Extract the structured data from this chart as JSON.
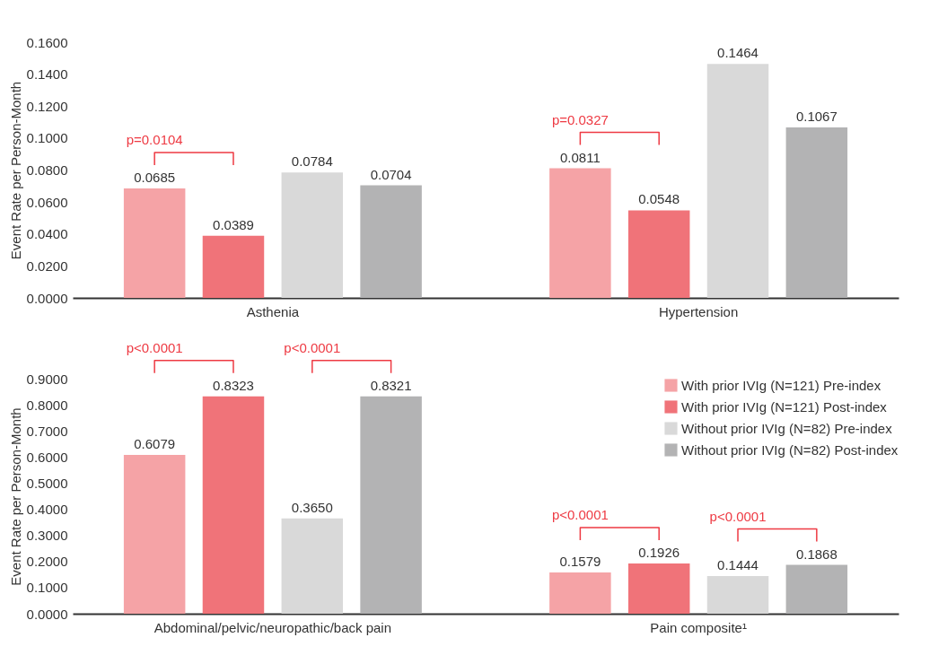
{
  "chart_data": [
    {
      "type": "bar",
      "ylabel": "Event Rate per Person-Month",
      "categories": [
        "Asthenia",
        "Hypertension"
      ],
      "series": [
        {
          "color": "#f5a3a6",
          "values": [
            0.0685,
            0.0811
          ],
          "value_labels": [
            "0.0685",
            "0.0811"
          ]
        },
        {
          "color": "#f07379",
          "values": [
            0.0389,
            0.0548
          ],
          "value_labels": [
            "0.0389",
            "0.0548"
          ]
        },
        {
          "color": "#d9d9d9",
          "values": [
            0.0784,
            0.1464
          ],
          "value_labels": [
            "0.0784",
            "0.1464"
          ]
        },
        {
          "color": "#b3b3b4",
          "values": [
            0.0704,
            0.1067
          ],
          "value_labels": [
            "0.0704",
            "0.1067"
          ]
        }
      ],
      "ylim": [
        0,
        0.16
      ],
      "yticks": [
        {
          "value": 0,
          "label": "0.0000"
        },
        {
          "value": 0.02,
          "label": "0.0200"
        },
        {
          "value": 0.04,
          "label": "0.0400"
        },
        {
          "value": 0.06,
          "label": "0.0600"
        },
        {
          "value": 0.08,
          "label": "0.0800"
        },
        {
          "value": 0.1,
          "label": "0.1000"
        },
        {
          "value": 0.12,
          "label": "0.1200"
        },
        {
          "value": 0.14,
          "label": "0.1400"
        },
        {
          "value": 0.16,
          "label": "0.1600"
        }
      ],
      "annotations": [
        "p=0.0104",
        "p=0.0327"
      ],
      "grid": false,
      "legend": false
    },
    {
      "type": "bar",
      "ylabel": "Event Rate per Person-Month",
      "categories": [
        "Abdominal/pelvic/neuropathic/back pain",
        "Pain composite¹"
      ],
      "series": [
        {
          "name": "With prior IVIg (N=121) Pre-index",
          "color": "#f5a3a6",
          "values": [
            0.6079,
            0.1579
          ],
          "value_labels": [
            "0.6079",
            "0.1579"
          ]
        },
        {
          "name": "With prior IVIg (N=121) Post-index",
          "color": "#f07379",
          "values": [
            0.8323,
            0.1926
          ],
          "value_labels": [
            "0.8323",
            "0.1926"
          ]
        },
        {
          "name": "Without prior IVIg (N=82) Pre-index",
          "color": "#d9d9d9",
          "values": [
            0.365,
            0.1444
          ],
          "value_labels": [
            "0.3650",
            "0.1444"
          ]
        },
        {
          "name": "Without prior IVIg (N=82) Post-index",
          "color": "#b3b3b4",
          "values": [
            0.8321,
            0.1868
          ],
          "value_labels": [
            "0.8321",
            "0.1868"
          ]
        }
      ],
      "ylim": [
        0,
        0.9
      ],
      "yticks": [
        {
          "value": 0,
          "label": "0.0000"
        },
        {
          "value": 0.1,
          "label": "0.1000"
        },
        {
          "value": 0.2,
          "label": "0.2000"
        },
        {
          "value": 0.3,
          "label": "0.3000"
        },
        {
          "value": 0.4,
          "label": "0.4000"
        },
        {
          "value": 0.5,
          "label": "0.5000"
        },
        {
          "value": 0.6,
          "label": "0.6000"
        },
        {
          "value": 0.7,
          "label": "0.7000"
        },
        {
          "value": 0.8,
          "label": "0.8000"
        },
        {
          "value": 0.9,
          "label": "0.9000"
        }
      ],
      "annotations": [
        "p<0.0001",
        "p<0.0001",
        "p<0.0001",
        "p<0.0001"
      ],
      "grid": false,
      "legend": "top right"
    }
  ]
}
